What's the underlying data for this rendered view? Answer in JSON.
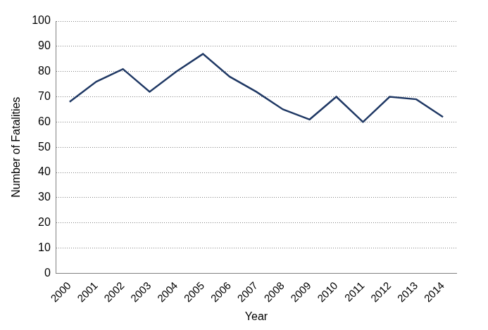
{
  "chart_data": {
    "type": "line",
    "x_label": "Year",
    "y_label": "Number of Fatalities",
    "categories": [
      "2000",
      "2001",
      "2002",
      "2003",
      "2004",
      "2005",
      "2006",
      "2007",
      "2008",
      "2009",
      "2010",
      "2011",
      "2012",
      "2013",
      "2014"
    ],
    "values": [
      68,
      76,
      81,
      72,
      80,
      87,
      78,
      72,
      65,
      61,
      70,
      60,
      70,
      69,
      62
    ],
    "color": "#1f3864",
    "ylim": [
      0,
      100
    ],
    "yticks": [
      0,
      10,
      20,
      30,
      40,
      50,
      60,
      70,
      80,
      90,
      100
    ],
    "grid": true
  }
}
